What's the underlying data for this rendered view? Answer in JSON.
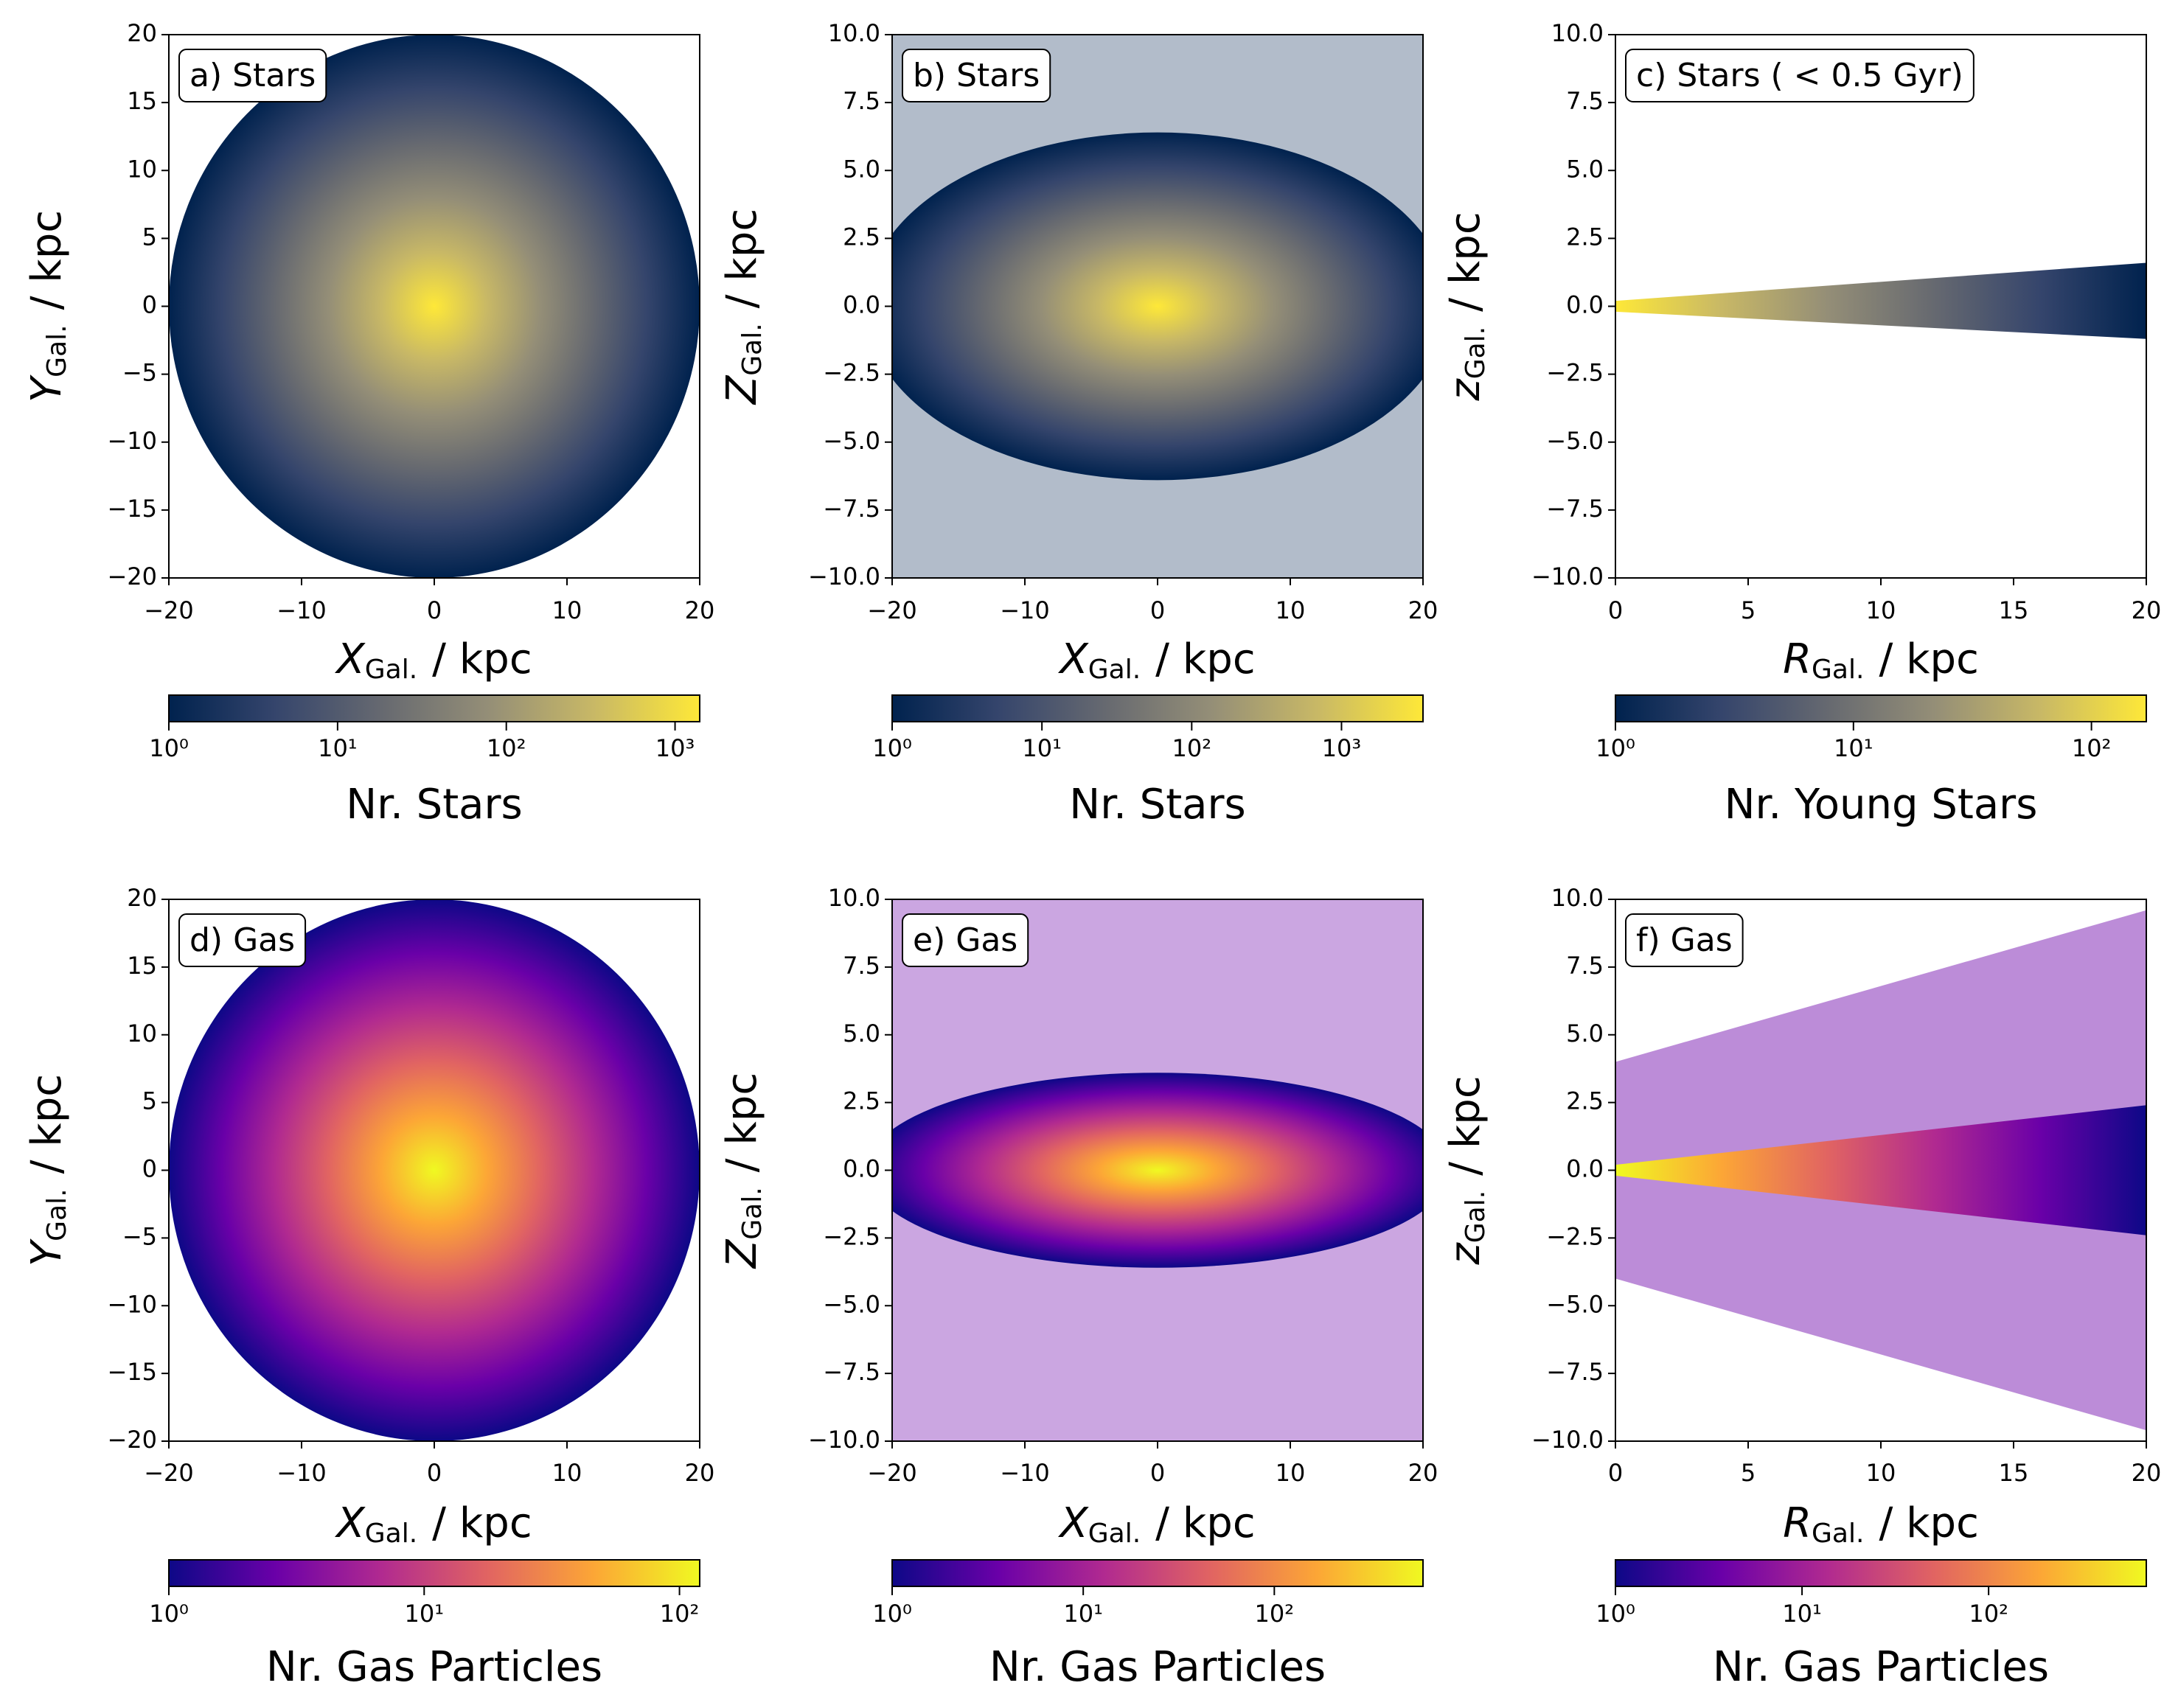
{
  "chart_data": [
    {
      "type": "hist2d",
      "panel_label": "a) Stars",
      "xlabel": {
        "symbol": "X",
        "subscript": "Gal.",
        "unit": "/ kpc"
      },
      "ylabel": {
        "symbol": "Y",
        "subscript": "Gal.",
        "unit": "/ kpc"
      },
      "xlim": [
        -20,
        20
      ],
      "xticks": [
        {
          "value": -20,
          "label": "−20"
        },
        {
          "value": -10,
          "label": "−10"
        },
        0,
        10,
        20
      ],
      "ylim": [
        -20,
        20
      ],
      "yticks": [
        {
          "value": -20,
          "label": "−20"
        },
        {
          "value": -15,
          "label": "−15"
        },
        {
          "value": -10,
          "label": "−10"
        },
        {
          "value": -5,
          "label": "−5"
        },
        0,
        5,
        10,
        15,
        20
      ],
      "colorbar": {
        "label": "Nr. Stars",
        "log": true,
        "lim": [
          1,
          1400
        ],
        "ticks": [
          {
            "value": 1,
            "label": "10⁰"
          },
          {
            "value": 10,
            "label": "10¹"
          },
          {
            "value": 100,
            "label": "10²"
          },
          {
            "value": 1000,
            "label": "10³"
          }
        ],
        "colors": [
          "#00224e",
          "#35456c",
          "#666970",
          "#948e77",
          "#c8b866",
          "#fee838"
        ]
      }
    },
    {
      "type": "hist2d",
      "panel_label": "b) Stars",
      "xlabel": {
        "symbol": "X",
        "subscript": "Gal.",
        "unit": "/ kpc"
      },
      "ylabel": {
        "symbol": "Z",
        "subscript": "Gal.",
        "unit": "/ kpc"
      },
      "xlim": [
        -20,
        20
      ],
      "xticks": [
        {
          "value": -20,
          "label": "−20"
        },
        {
          "value": -10,
          "label": "−10"
        },
        0,
        10,
        20
      ],
      "ylim": [
        -10,
        10
      ],
      "yticks": [
        {
          "value": -10,
          "label": "−10.0"
        },
        {
          "value": -7.5,
          "label": "−7.5"
        },
        {
          "value": -5,
          "label": "−5.0"
        },
        {
          "value": -2.5,
          "label": "−2.5"
        },
        {
          "value": 0,
          "label": "0.0"
        },
        2.5,
        {
          "value": 5,
          "label": "5.0"
        },
        7.5,
        {
          "value": 10,
          "label": "10.0"
        }
      ],
      "colorbar": {
        "label": "Nr. Stars",
        "log": true,
        "lim": [
          1,
          3500
        ],
        "ticks": [
          {
            "value": 1,
            "label": "10⁰"
          },
          {
            "value": 10,
            "label": "10¹"
          },
          {
            "value": 100,
            "label": "10²"
          },
          {
            "value": 1000,
            "label": "10³"
          }
        ],
        "colors": [
          "#00224e",
          "#35456c",
          "#666970",
          "#948e77",
          "#c8b866",
          "#fee838"
        ]
      }
    },
    {
      "type": "hist2d",
      "panel_label": "c) Stars ( < 0.5 Gyr)",
      "xlabel": {
        "symbol": "R",
        "subscript": "Gal.",
        "unit": "/ kpc"
      },
      "ylabel": {
        "symbol": "z",
        "subscript": "Gal.",
        "unit": "/ kpc"
      },
      "xlim": [
        0,
        20
      ],
      "xticks": [
        0,
        5,
        10,
        15,
        20
      ],
      "ylim": [
        -10,
        10
      ],
      "yticks": [
        {
          "value": -10,
          "label": "−10.0"
        },
        {
          "value": -7.5,
          "label": "−7.5"
        },
        {
          "value": -5,
          "label": "−5.0"
        },
        {
          "value": -2.5,
          "label": "−2.5"
        },
        {
          "value": 0,
          "label": "0.0"
        },
        2.5,
        {
          "value": 5,
          "label": "5.0"
        },
        7.5,
        {
          "value": 10,
          "label": "10.0"
        }
      ],
      "colorbar": {
        "label": "Nr. Young Stars",
        "log": true,
        "lim": [
          1,
          170
        ],
        "ticks": [
          {
            "value": 1,
            "label": "10⁰"
          },
          {
            "value": 10,
            "label": "10¹"
          },
          {
            "value": 100,
            "label": "10²"
          }
        ],
        "colors": [
          "#00224e",
          "#35456c",
          "#666970",
          "#948e77",
          "#c8b866",
          "#fee838"
        ]
      }
    },
    {
      "type": "hist2d",
      "panel_label": "d) Gas",
      "xlabel": {
        "symbol": "X",
        "subscript": "Gal.",
        "unit": "/ kpc"
      },
      "ylabel": {
        "symbol": "Y",
        "subscript": "Gal.",
        "unit": "/ kpc"
      },
      "xlim": [
        -20,
        20
      ],
      "xticks": [
        {
          "value": -20,
          "label": "−20"
        },
        {
          "value": -10,
          "label": "−10"
        },
        0,
        10,
        20
      ],
      "ylim": [
        -20,
        20
      ],
      "yticks": [
        {
          "value": -20,
          "label": "−20"
        },
        {
          "value": -15,
          "label": "−15"
        },
        {
          "value": -10,
          "label": "−10"
        },
        {
          "value": -5,
          "label": "−5"
        },
        0,
        5,
        10,
        15,
        20
      ],
      "colorbar": {
        "label": "Nr. Gas Particles",
        "log": true,
        "lim": [
          1,
          120
        ],
        "ticks": [
          {
            "value": 1,
            "label": "10⁰"
          },
          {
            "value": 10,
            "label": "10¹"
          },
          {
            "value": 100,
            "label": "10²"
          }
        ],
        "colors": [
          "#0d0887",
          "#6a00a8",
          "#b12a90",
          "#e16462",
          "#fca636",
          "#f0f921"
        ]
      }
    },
    {
      "type": "hist2d",
      "panel_label": "e) Gas",
      "xlabel": {
        "symbol": "X",
        "subscript": "Gal.",
        "unit": "/ kpc"
      },
      "ylabel": {
        "symbol": "Z",
        "subscript": "Gal.",
        "unit": "/ kpc"
      },
      "xlim": [
        -20,
        20
      ],
      "xticks": [
        {
          "value": -20,
          "label": "−20"
        },
        {
          "value": -10,
          "label": "−10"
        },
        0,
        10,
        20
      ],
      "ylim": [
        -10,
        10
      ],
      "yticks": [
        {
          "value": -10,
          "label": "−10.0"
        },
        {
          "value": -7.5,
          "label": "−7.5"
        },
        {
          "value": -5,
          "label": "−5.0"
        },
        {
          "value": -2.5,
          "label": "−2.5"
        },
        {
          "value": 0,
          "label": "0.0"
        },
        2.5,
        {
          "value": 5,
          "label": "5.0"
        },
        7.5,
        {
          "value": 10,
          "label": "10.0"
        }
      ],
      "colorbar": {
        "label": "Nr. Gas Particles",
        "log": true,
        "lim": [
          1,
          600
        ],
        "ticks": [
          {
            "value": 1,
            "label": "10⁰"
          },
          {
            "value": 10,
            "label": "10¹"
          },
          {
            "value": 100,
            "label": "10²"
          }
        ],
        "colors": [
          "#0d0887",
          "#6a00a8",
          "#b12a90",
          "#e16462",
          "#fca636",
          "#f0f921"
        ]
      }
    },
    {
      "type": "hist2d",
      "panel_label": "f) Gas",
      "xlabel": {
        "symbol": "R",
        "subscript": "Gal.",
        "unit": "/ kpc"
      },
      "ylabel": {
        "symbol": "z",
        "subscript": "Gal.",
        "unit": "/ kpc"
      },
      "xlim": [
        0,
        20
      ],
      "xticks": [
        0,
        5,
        10,
        15,
        20
      ],
      "ylim": [
        -10,
        10
      ],
      "yticks": [
        {
          "value": -10,
          "label": "−10.0"
        },
        {
          "value": -7.5,
          "label": "−7.5"
        },
        {
          "value": -5,
          "label": "−5.0"
        },
        {
          "value": -2.5,
          "label": "−2.5"
        },
        {
          "value": 0,
          "label": "0.0"
        },
        2.5,
        {
          "value": 5,
          "label": "5.0"
        },
        7.5,
        {
          "value": 10,
          "label": "10.0"
        }
      ],
      "colorbar": {
        "label": "Nr. Gas Particles",
        "log": true,
        "lim": [
          1,
          700
        ],
        "ticks": [
          {
            "value": 1,
            "label": "10⁰"
          },
          {
            "value": 10,
            "label": "10¹"
          },
          {
            "value": 100,
            "label": "10²"
          }
        ],
        "colors": [
          "#0d0887",
          "#6a00a8",
          "#b12a90",
          "#e16462",
          "#fca636",
          "#f0f921"
        ]
      }
    }
  ]
}
